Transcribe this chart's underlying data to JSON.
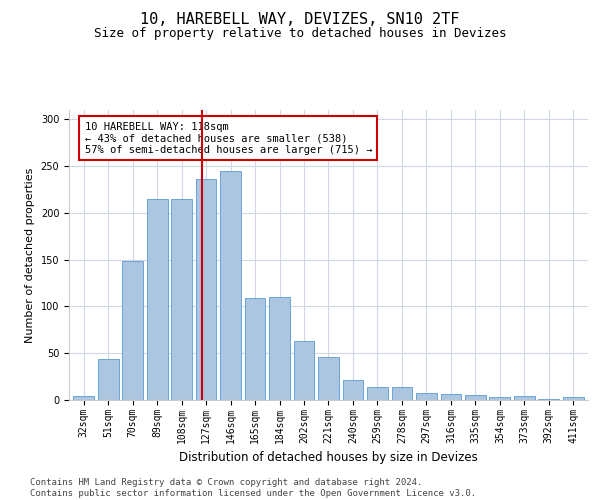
{
  "title": "10, HAREBELL WAY, DEVIZES, SN10 2TF",
  "subtitle": "Size of property relative to detached houses in Devizes",
  "xlabel": "Distribution of detached houses by size in Devizes",
  "ylabel": "Number of detached properties",
  "categories": [
    "32sqm",
    "51sqm",
    "70sqm",
    "89sqm",
    "108sqm",
    "127sqm",
    "146sqm",
    "165sqm",
    "184sqm",
    "202sqm",
    "221sqm",
    "240sqm",
    "259sqm",
    "278sqm",
    "297sqm",
    "316sqm",
    "335sqm",
    "354sqm",
    "373sqm",
    "392sqm",
    "411sqm"
  ],
  "values": [
    4,
    44,
    149,
    215,
    215,
    236,
    245,
    109,
    110,
    63,
    46,
    21,
    14,
    14,
    8,
    6,
    5,
    3,
    4,
    1,
    3
  ],
  "bar_color": "#adc6e0",
  "bar_edge_color": "#5b9bd5",
  "vline_color": "#cc0000",
  "vline_pos": 4.85,
  "annotation_text": "10 HAREBELL WAY: 118sqm\n← 43% of detached houses are smaller (538)\n57% of semi-detached houses are larger (715) →",
  "annotation_box_color": "#ffffff",
  "annotation_box_edge": "#cc0000",
  "ylim": [
    0,
    310
  ],
  "yticks": [
    0,
    50,
    100,
    150,
    200,
    250,
    300
  ],
  "grid_color": "#d0d8e8",
  "footer": "Contains HM Land Registry data © Crown copyright and database right 2024.\nContains public sector information licensed under the Open Government Licence v3.0.",
  "title_fontsize": 11,
  "subtitle_fontsize": 9,
  "ylabel_fontsize": 8,
  "xlabel_fontsize": 8.5,
  "tick_fontsize": 7,
  "annotation_fontsize": 7.5,
  "footer_fontsize": 6.5
}
